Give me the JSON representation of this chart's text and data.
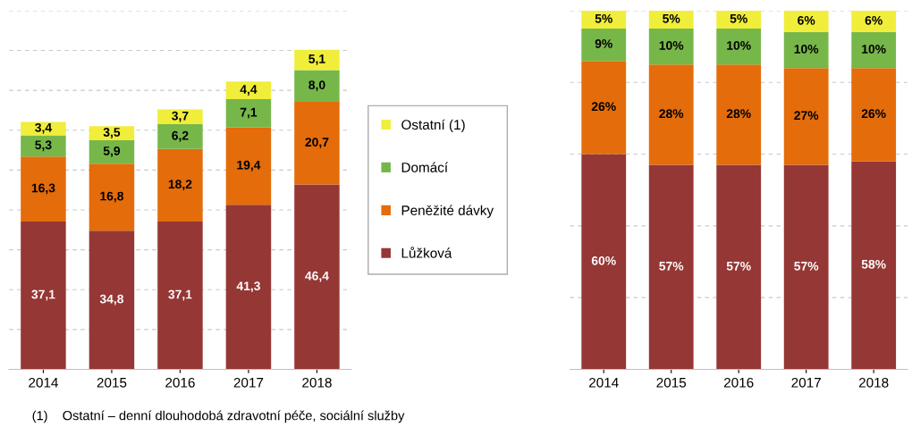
{
  "chart_data": [
    {
      "type": "bar",
      "stacked": true,
      "categories": [
        "2014",
        "2015",
        "2016",
        "2017",
        "2018"
      ],
      "ylim": [
        0,
        90
      ],
      "yticks": [
        {
          "value": 0,
          "label": null
        },
        {
          "value": 10,
          "label": null
        },
        {
          "value": 20,
          "label": null
        },
        {
          "value": 30,
          "label": null
        },
        {
          "value": 40,
          "label": null
        },
        {
          "value": 50,
          "label": null
        },
        {
          "value": 60,
          "label": null
        },
        {
          "value": 70,
          "label": null
        },
        {
          "value": 80,
          "label": null
        },
        {
          "value": 90,
          "label": null
        }
      ],
      "tick_labels": "x",
      "grid": "y",
      "legend": "right",
      "series": [
        {
          "name": "Lůžková",
          "color": "#953735",
          "values": [
            37.1,
            34.8,
            37.1,
            41.3,
            46.4
          ],
          "value_labels": [
            "37,1",
            "34,8",
            "37,1",
            "41,3",
            "46,4"
          ]
        },
        {
          "name": "Peněžité dávky",
          "color": "#e46c0a",
          "values": [
            16.3,
            16.8,
            18.2,
            19.4,
            20.7
          ],
          "value_labels": [
            "16,3",
            "16,8",
            "18,2",
            "19,4",
            "20,7"
          ]
        },
        {
          "name": "Domácí",
          "color": "#77b74a",
          "values": [
            5.3,
            5.9,
            6.2,
            7.1,
            8.0
          ],
          "value_labels": [
            "5,3",
            "5,9",
            "6,2",
            "7,1",
            "8,0"
          ]
        },
        {
          "name": "Ostatní (1)",
          "color": "#f0ee3a",
          "values": [
            3.4,
            3.5,
            3.7,
            4.4,
            5.1
          ],
          "value_labels": [
            "3,4",
            "3,5",
            "3,7",
            "4,4",
            "5,1"
          ]
        }
      ],
      "annotations": [
        "(1)    Ostatní – denní dlouhodobá zdravotní péče, sociální služby"
      ]
    },
    {
      "type": "bar",
      "stacked": true,
      "categories": [
        "2014",
        "2015",
        "2016",
        "2017",
        "2018"
      ],
      "ylim": [
        0,
        100
      ],
      "yticks": [
        {
          "value": 0,
          "label": null
        },
        {
          "value": 20,
          "label": null
        },
        {
          "value": 40,
          "label": null
        },
        {
          "value": 60,
          "label": null
        },
        {
          "value": 80,
          "label": null
        },
        {
          "value": 100,
          "label": null
        }
      ],
      "tick_labels": "x",
      "grid": "y",
      "series": [
        {
          "color": "#953735",
          "values": [
            60,
            57,
            57,
            57,
            58
          ],
          "value_labels": [
            "60%",
            "57%",
            "57%",
            "57%",
            "58%"
          ]
        },
        {
          "color": "#e46c0a",
          "values": [
            26,
            28,
            28,
            27,
            26
          ],
          "value_labels": [
            "26%",
            "28%",
            "28%",
            "27%",
            "26%"
          ]
        },
        {
          "color": "#77b74a",
          "values": [
            9,
            10,
            10,
            10,
            10
          ],
          "value_labels": [
            "9%",
            "10%",
            "10%",
            "10%",
            "10%"
          ]
        },
        {
          "color": "#f0ee3a",
          "values": [
            5,
            5,
            5,
            6,
            6
          ],
          "value_labels": [
            "5%",
            "5%",
            "5%",
            "6%",
            "6%"
          ]
        }
      ]
    }
  ]
}
